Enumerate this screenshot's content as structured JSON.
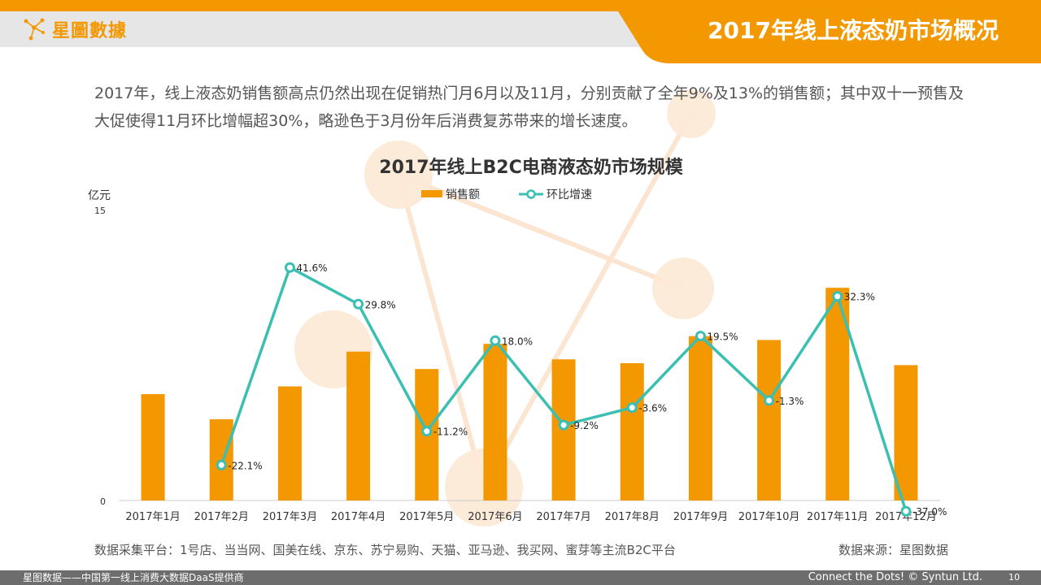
{
  "header": {
    "logo_text": "星圖數據",
    "title": "2017年线上液态奶市场概况"
  },
  "summary": "2017年，线上液态奶销售额高点仍然出现在促销热门月6月以及11月，分别贡献了全年9%及13%的销售额；其中双十一预售及大促使得11月环比增幅超30%，略逊色于3月份年后消费复苏带来的增长速度。",
  "chart_data": {
    "type": "bar",
    "title": "2017年线上B2C电商液态奶市场规模",
    "ylabel": "亿元",
    "ylim": [
      0,
      15
    ],
    "yticks": [
      "0",
      "15"
    ],
    "legend_position": "top",
    "categories": [
      "2017年1月",
      "2017年2月",
      "2017年3月",
      "2017年4月",
      "2017年5月",
      "2017年6月",
      "2017年7月",
      "2017年8月",
      "2017年9月",
      "2017年10月",
      "2017年11月",
      "2017年12月"
    ],
    "series": [
      {
        "name": "销售额",
        "type": "bar",
        "color": "#f39800",
        "values": [
          5.5,
          4.2,
          5.9,
          7.7,
          6.8,
          8.1,
          7.3,
          7.1,
          8.5,
          8.3,
          11.0,
          7.0
        ]
      },
      {
        "name": "环比增速",
        "type": "line",
        "color": "#3bbfb2",
        "values": [
          null,
          -22.1,
          41.6,
          29.8,
          -11.2,
          18.0,
          -9.2,
          -3.6,
          19.5,
          -1.3,
          32.3,
          -37.0
        ],
        "labels": [
          "",
          "-22.1%",
          "41.6%",
          "29.8%",
          "-11.2%",
          "18.0%",
          "-9.2%",
          "-3.6%",
          "19.5%",
          "-1.3%",
          "32.3%",
          "-37.0%"
        ]
      }
    ]
  },
  "footnotes": {
    "platforms": "数据采集平台：1号店、当当网、国美在线、京东、苏宁易购、天猫、亚马逊、我买网、蜜芽等主流B2C平台",
    "source": "数据来源：星图数据"
  },
  "footer": {
    "tagline": "星图数据——中国第一线上消费大数据DaaS提供商",
    "slogan": "Connect the Dots! © Syntun Ltd.",
    "page_number": "10"
  },
  "colors": {
    "accent": "#f39800",
    "line": "#3bbfb2",
    "header_gray": "#e6e6e6",
    "footer_gray": "#6d6d6d"
  }
}
